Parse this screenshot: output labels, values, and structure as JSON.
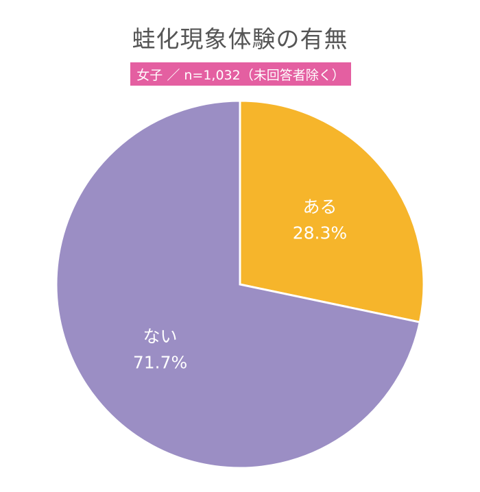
{
  "chart_data": {
    "type": "pie",
    "title": "蛙化現象体験の有無",
    "subtitle": "女子 ／ n=1,032（未回答者除く）",
    "start_angle_deg": 0,
    "direction": "clockwise",
    "series": [
      {
        "values": [
          28.3,
          71.7
        ],
        "labels": [
          "ある",
          "ない"
        ],
        "value_labels": [
          "28.3%",
          "71.7%"
        ],
        "colors": [
          "#f6b52b",
          "#9b8ec4"
        ]
      }
    ],
    "slice_border_color": "#ffffff"
  }
}
